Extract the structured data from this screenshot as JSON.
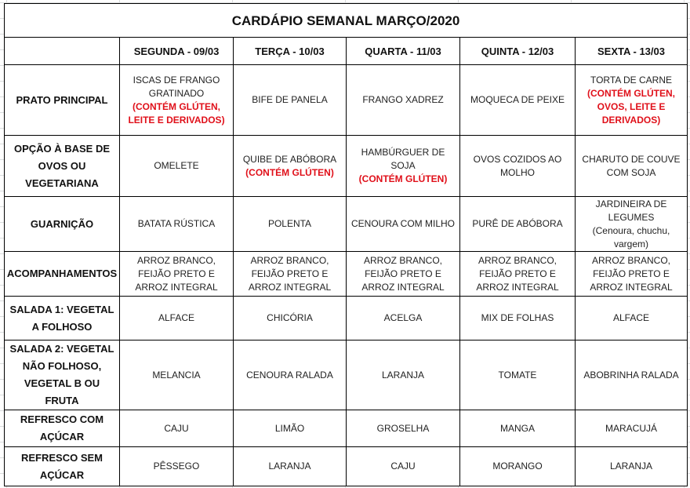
{
  "title": "CARDÁPIO SEMANAL MARÇO/2020",
  "days": [
    "SEGUNDA - 09/03",
    "TERÇA - 10/03",
    "QUARTA - 11/03",
    "QUINTA - 12/03",
    "SEXTA - 13/03"
  ],
  "colors": {
    "warning": "#e0101a",
    "border": "#000000"
  },
  "rows": [
    {
      "label": "PRATO PRINCIPAL",
      "cells": [
        {
          "text": "ISCAS DE FRANGO GRATINADO",
          "warning": "(CONTÉM GLÚTEN, LEITE E DERIVADOS)"
        },
        {
          "text": "BIFE DE PANELA"
        },
        {
          "text": "FRANGO XADREZ"
        },
        {
          "text": "MOQUECA DE PEIXE"
        },
        {
          "text": "TORTA DE CARNE",
          "warning": "(CONTÉM GLÚTEN, OVOS, LEITE E DERIVADOS)"
        }
      ]
    },
    {
      "label": "OPÇÃO À BASE DE OVOS OU VEGETARIANA",
      "cells": [
        {
          "text": "OMELETE"
        },
        {
          "text": "QUIBE DE ABÓBORA",
          "warning": "(CONTÉM GLÚTEN)"
        },
        {
          "text": "HAMBÚRGUER DE SOJA",
          "warning": "(CONTÉM GLÚTEN)"
        },
        {
          "text": "OVOS COZIDOS AO MOLHO"
        },
        {
          "text": "CHARUTO DE COUVE COM SOJA"
        }
      ]
    },
    {
      "label": "GUARNIÇÃO",
      "cells": [
        {
          "text": "BATATA RÚSTICA"
        },
        {
          "text": "POLENTA"
        },
        {
          "text": "CENOURA COM MILHO"
        },
        {
          "text": "PURÊ DE ABÓBORA"
        },
        {
          "text": "JARDINEIRA DE LEGUMES",
          "note": "(Cenoura, chuchu, vargem)"
        }
      ]
    },
    {
      "label": "ACOMPANHAMENTOS",
      "cells": [
        {
          "text": "ARROZ BRANCO, FEIJÃO PRETO E ARROZ INTEGRAL"
        },
        {
          "text": "ARROZ BRANCO, FEIJÃO PRETO E ARROZ INTEGRAL"
        },
        {
          "text": "ARROZ BRANCO, FEIJÃO PRETO E ARROZ INTEGRAL"
        },
        {
          "text": "ARROZ BRANCO, FEIJÃO PRETO E ARROZ INTEGRAL"
        },
        {
          "text": "ARROZ BRANCO, FEIJÃO PRETO E ARROZ INTEGRAL"
        }
      ]
    },
    {
      "label": "SALADA 1: VEGETAL A FOLHOSO",
      "cells": [
        {
          "text": "ALFACE"
        },
        {
          "text": "CHICÓRIA"
        },
        {
          "text": "ACELGA"
        },
        {
          "text": "MIX DE FOLHAS"
        },
        {
          "text": "ALFACE"
        }
      ]
    },
    {
      "label": "SALADA 2: VEGETAL NÃO FOLHOSO, VEGETAL B OU FRUTA",
      "cells": [
        {
          "text": "MELANCIA"
        },
        {
          "text": "CENOURA RALADA"
        },
        {
          "text": "LARANJA"
        },
        {
          "text": "TOMATE"
        },
        {
          "text": "ABOBRINHA RALADA"
        }
      ]
    },
    {
      "label": "REFRESCO COM AÇÚCAR",
      "cells": [
        {
          "text": "CAJU"
        },
        {
          "text": "LIMÃO"
        },
        {
          "text": "GROSELHA"
        },
        {
          "text": "MANGA"
        },
        {
          "text": "MARACUJÁ"
        }
      ]
    },
    {
      "label": "REFRESCO SEM AÇÚCAR",
      "cells": [
        {
          "text": "PÊSSEGO"
        },
        {
          "text": "LARANJA"
        },
        {
          "text": "CAJU"
        },
        {
          "text": "MORANGO"
        },
        {
          "text": "LARANJA"
        }
      ]
    }
  ]
}
